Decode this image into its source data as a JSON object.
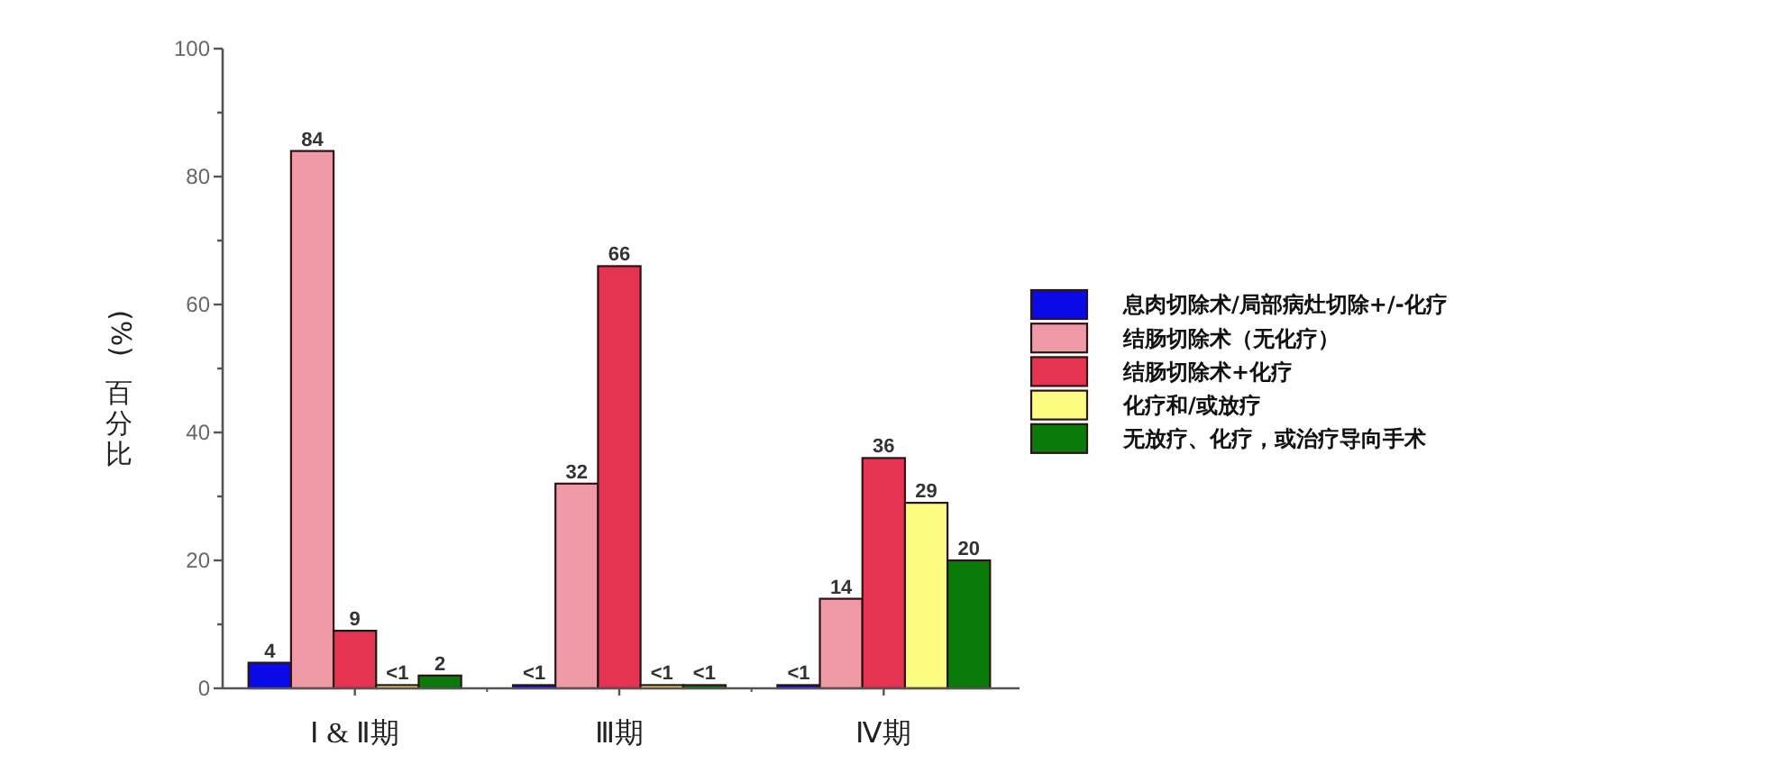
{
  "chart_data": {
    "type": "bar",
    "ylabel": "(%) 百分比",
    "categories": [
      "Ⅰ & Ⅱ期",
      "Ⅲ期",
      "Ⅳ期"
    ],
    "series": [
      {
        "name": "息肉切除术/局部病灶切除+/-化疗",
        "color": "#0a0ae6",
        "values": [
          4,
          0.5,
          0.5
        ],
        "value_labels": [
          "4",
          "<1",
          "<1"
        ]
      },
      {
        "name": "结肠切除术（无化疗）",
        "color": "#f09aa8",
        "values": [
          84,
          32,
          14
        ],
        "value_labels": [
          "84",
          "32",
          "14"
        ]
      },
      {
        "name": "结肠切除术+化疗",
        "color": "#e43452",
        "values": [
          9,
          66,
          36
        ],
        "value_labels": [
          "9",
          "66",
          "36"
        ]
      },
      {
        "name": "化疗和/或放疗",
        "color": "#fcfc80",
        "values": [
          0.5,
          0.5,
          29
        ],
        "value_labels": [
          "<1",
          "<1",
          "29"
        ]
      },
      {
        "name": "无放疗、化疗，或治疗导向手术",
        "color": "#0a7a0a",
        "values": [
          2,
          0.5,
          20
        ],
        "value_labels": [
          "2",
          "<1",
          "20"
        ]
      }
    ],
    "ylim": [
      0,
      100
    ],
    "yticks": [
      0,
      {
        "value": 10,
        "label": null
      },
      20,
      {
        "value": 30,
        "label": null
      },
      40,
      {
        "value": 50,
        "label": null
      },
      60,
      {
        "value": 70,
        "label": null
      },
      80,
      {
        "value": 90,
        "label": null
      },
      100
    ],
    "legend": "right"
  }
}
